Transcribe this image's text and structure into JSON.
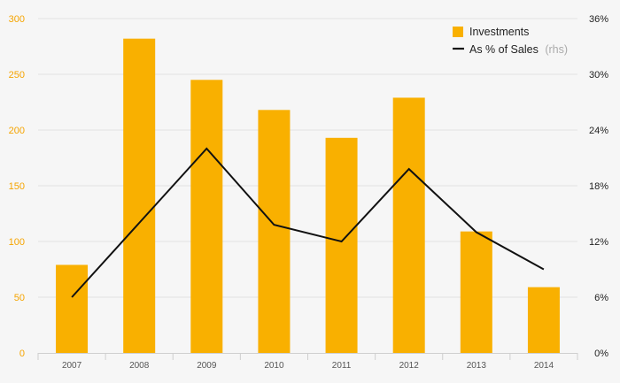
{
  "chart_data": {
    "type": "bar",
    "categories": [
      "2007",
      "2008",
      "2009",
      "2010",
      "2011",
      "2012",
      "2013",
      "2014"
    ],
    "series": [
      {
        "name": "Investments",
        "type": "bar",
        "axis": "left",
        "color": "#f9b000",
        "values": [
          79,
          282,
          245,
          218,
          193,
          229,
          109,
          59
        ]
      },
      {
        "name": "As % of Sales",
        "note": "(rhs)",
        "type": "line",
        "axis": "right",
        "color": "#111111",
        "values": [
          6.0,
          14.0,
          22.0,
          13.8,
          12.0,
          19.8,
          13.0,
          9.0
        ]
      }
    ],
    "ylim_left": [
      0,
      300
    ],
    "yticks_left": [
      "0",
      "50",
      "100",
      "150",
      "200",
      "250",
      "300"
    ],
    "ylim_right": [
      0,
      36
    ],
    "yticks_right": [
      "0%",
      "6%",
      "12%",
      "18%",
      "24%",
      "30%",
      "36%"
    ],
    "grid": true,
    "legend_position": "top-right",
    "colors": {
      "background": "#f6f6f6",
      "grid": "#e2e2e2",
      "left_axis_text": "#f5a400",
      "right_axis_text": "#222222"
    }
  }
}
